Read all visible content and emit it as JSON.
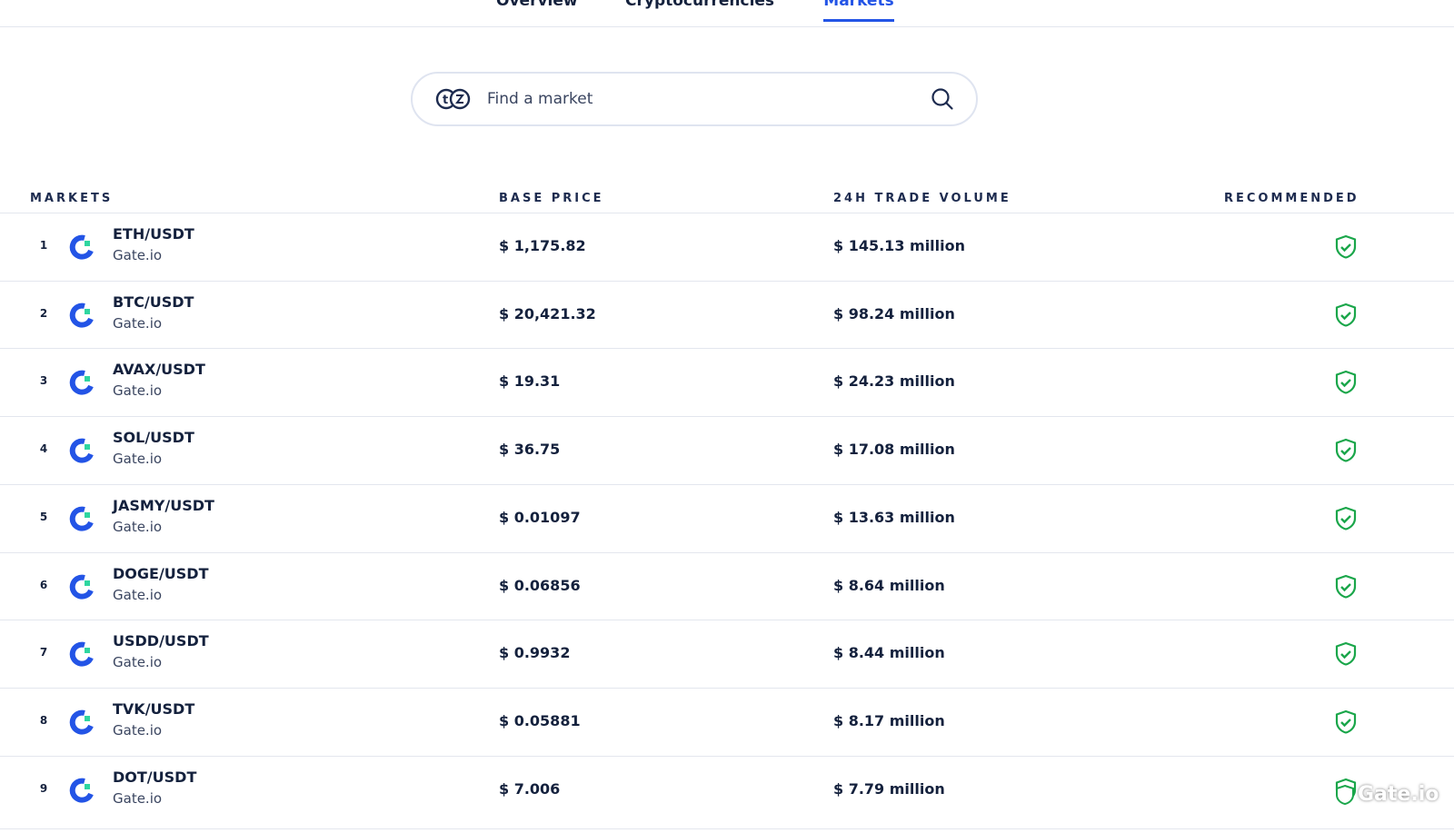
{
  "tabs": [
    {
      "label": "Overview"
    },
    {
      "label": "Cryptocurrencies"
    },
    {
      "label": "Markets",
      "active": true
    }
  ],
  "search": {
    "placeholder": "Find a market"
  },
  "columns": {
    "markets": "MARKETS",
    "base_price": "BASE PRICE",
    "volume": "24H TRADE VOLUME",
    "recommended": "RECOMMENDED"
  },
  "rows": [
    {
      "rank": "1",
      "pair": "ETH/USDT",
      "exchange": "Gate.io",
      "price": "$ 1,175.82",
      "volume": "$ 145.13 million",
      "recommended": true
    },
    {
      "rank": "2",
      "pair": "BTC/USDT",
      "exchange": "Gate.io",
      "price": "$ 20,421.32",
      "volume": "$ 98.24 million",
      "recommended": true
    },
    {
      "rank": "3",
      "pair": "AVAX/USDT",
      "exchange": "Gate.io",
      "price": "$ 19.31",
      "volume": "$ 24.23 million",
      "recommended": true
    },
    {
      "rank": "4",
      "pair": "SOL/USDT",
      "exchange": "Gate.io",
      "price": "$ 36.75",
      "volume": "$ 17.08 million",
      "recommended": true
    },
    {
      "rank": "5",
      "pair": "JASMY/USDT",
      "exchange": "Gate.io",
      "price": "$ 0.01097",
      "volume": "$ 13.63 million",
      "recommended": true
    },
    {
      "rank": "6",
      "pair": "DOGE/USDT",
      "exchange": "Gate.io",
      "price": "$ 0.06856",
      "volume": "$ 8.64 million",
      "recommended": true
    },
    {
      "rank": "7",
      "pair": "USDD/USDT",
      "exchange": "Gate.io",
      "price": "$ 0.9932",
      "volume": "$ 8.44 million",
      "recommended": true
    },
    {
      "rank": "8",
      "pair": "TVK/USDT",
      "exchange": "Gate.io",
      "price": "$ 0.05881",
      "volume": "$ 8.17 million",
      "recommended": true
    },
    {
      "rank": "9",
      "pair": "DOT/USDT",
      "exchange": "Gate.io",
      "price": "$ 7.006",
      "volume": "$ 7.79 million",
      "recommended": true
    }
  ],
  "watermark": "Gate.io",
  "colors": {
    "accent": "#2354e6",
    "recommended": "#1aa64a",
    "logo_blue": "#2354e6",
    "logo_green": "#2fd6a0"
  }
}
